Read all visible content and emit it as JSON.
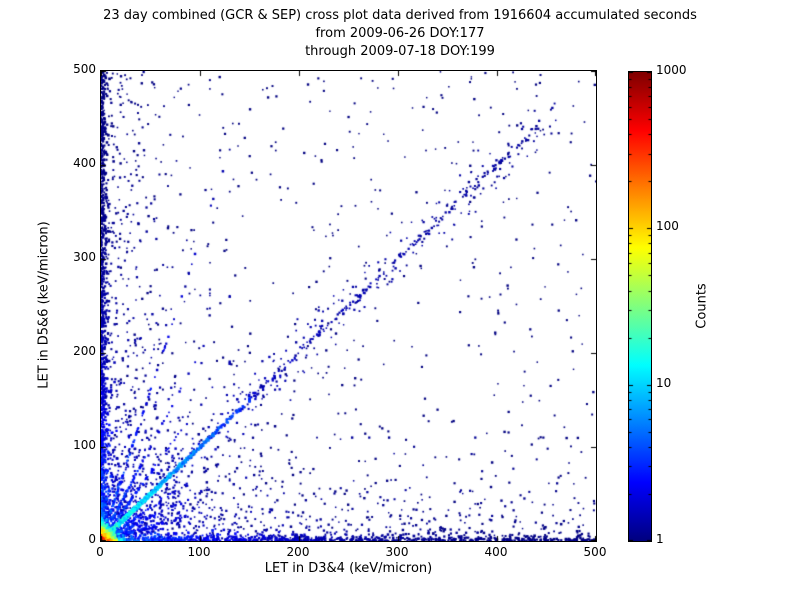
{
  "chart_data": {
    "type": "scatter",
    "title": "23 day combined (GCR & SEP) cross plot data derived from 1916604 accumulated seconds",
    "subtitle1": "from 2009-06-26 DOY:177",
    "subtitle2": "through 2009-07-18 DOY:199",
    "xlabel": "LET in D3&4 (keV/micron)",
    "ylabel": "LET in D5&6 (keV/micron)",
    "xlim": [
      0,
      500
    ],
    "ylim": [
      0,
      500
    ],
    "grid": false,
    "x_ticks": [
      "0",
      "100",
      "200",
      "300",
      "400",
      "500"
    ],
    "y_ticks": [
      "0",
      "100",
      "200",
      "300",
      "400",
      "500"
    ],
    "colorbar": {
      "label": "Counts",
      "scale": "log",
      "min": 1,
      "max": 1000,
      "ticks": [
        "1000",
        "100",
        "10",
        "1"
      ],
      "colormap": "jet",
      "colormap_stops": [
        [
          0,
          "#00007f"
        ],
        [
          0.125,
          "#0000ff"
        ],
        [
          0.375,
          "#00ffff"
        ],
        [
          0.625,
          "#ffff00"
        ],
        [
          0.875,
          "#ff0000"
        ],
        [
          1,
          "#7f0000"
        ]
      ]
    },
    "seed": 177,
    "features": [
      {
        "name": "uniform-sparse",
        "dist": "uniform",
        "n": 520,
        "size": 1.4,
        "count": {
          "min": 1,
          "base": 0,
          "decay": 1,
          "measure": "x"
        }
      },
      {
        "name": "broad-diagonal-cloud",
        "dist": "diagu",
        "n": 260,
        "min": 60,
        "max": 460,
        "jitter": 28,
        "size": 1.4,
        "count": {
          "min": 1,
          "base": 0.6,
          "decay": 400,
          "measure": "diag"
        }
      },
      {
        "name": "lower-left-cloud",
        "dist": "exp2d",
        "n": 850,
        "sx": 55,
        "sy": 55,
        "size": 1.5,
        "count": {
          "min": 1,
          "base": 2,
          "decay": 80,
          "measure": "sum"
        }
      },
      {
        "name": "left-cloud",
        "dist": "bandv",
        "n": 420,
        "scale": 30,
        "cap": 110,
        "power": 1,
        "size": 1.4,
        "count": {
          "min": 1,
          "base": 0.8,
          "decay": 200,
          "measure": "y"
        }
      },
      {
        "name": "bottom-cloud",
        "dist": "bandh",
        "n": 330,
        "scale": 30,
        "cap": 110,
        "power": 1,
        "size": 1.4,
        "count": {
          "min": 1,
          "base": 0.8,
          "decay": 200,
          "measure": "x"
        }
      },
      {
        "name": "left-edge-band",
        "dist": "bandv",
        "n": 950,
        "scale": 2.6,
        "cap": 18,
        "power": 1.25,
        "size": 1.7,
        "count": {
          "min": 1,
          "base": 5,
          "decay": 90,
          "measure": "y"
        }
      },
      {
        "name": "bottom-edge-band",
        "dist": "bandh",
        "n": 780,
        "scale": 2.6,
        "cap": 18,
        "power": 1.25,
        "size": 1.7,
        "count": {
          "min": 1,
          "base": 5,
          "decay": 90,
          "measure": "x"
        }
      },
      {
        "name": "origin-fan-rays",
        "dist": "rays",
        "n": 650,
        "scale": 28,
        "max": 130,
        "jitter": 1.6,
        "slopes": [
          0.3,
          0.5,
          0.7,
          1.45,
          2.0,
          3.2
        ],
        "size": 1.5,
        "count": {
          "min": 1,
          "base": 4,
          "decay": 50,
          "measure": "x"
        }
      },
      {
        "name": "diagonal-sparse",
        "dist": "diagu",
        "n": 230,
        "min": 90,
        "max": 440,
        "jitter": 4,
        "size": 1.5,
        "count": {
          "min": 1,
          "base": 1,
          "decay": 300,
          "measure": "diag"
        }
      },
      {
        "name": "main-diagonal",
        "dist": "diag",
        "n": 1150,
        "scale": 36,
        "max": 150,
        "jitter": 1.8,
        "size": 1.8,
        "count": {
          "min": 2,
          "base": 22,
          "decay": 55,
          "measure": "diag"
        }
      },
      {
        "name": "y-axis-hot-streak",
        "dist": "exp2d",
        "n": 450,
        "sx": 1.0,
        "sy": 3.2,
        "size": 1.8,
        "count": {
          "min": 2,
          "base": 300,
          "decay": 7,
          "measure": "sum"
        }
      },
      {
        "name": "x-axis-hot-streak",
        "dist": "exp2d",
        "n": 600,
        "sx": 4.5,
        "sy": 1.0,
        "size": 1.8,
        "count": {
          "min": 2,
          "base": 450,
          "decay": 8,
          "measure": "sum"
        }
      },
      {
        "name": "origin-hotspot",
        "dist": "exp2d",
        "n": 2300,
        "sx": 3.2,
        "sy": 3.2,
        "size": 2.0,
        "count": {
          "min": 1,
          "base": 900,
          "decay": 5.5,
          "measure": "sum"
        }
      }
    ]
  }
}
